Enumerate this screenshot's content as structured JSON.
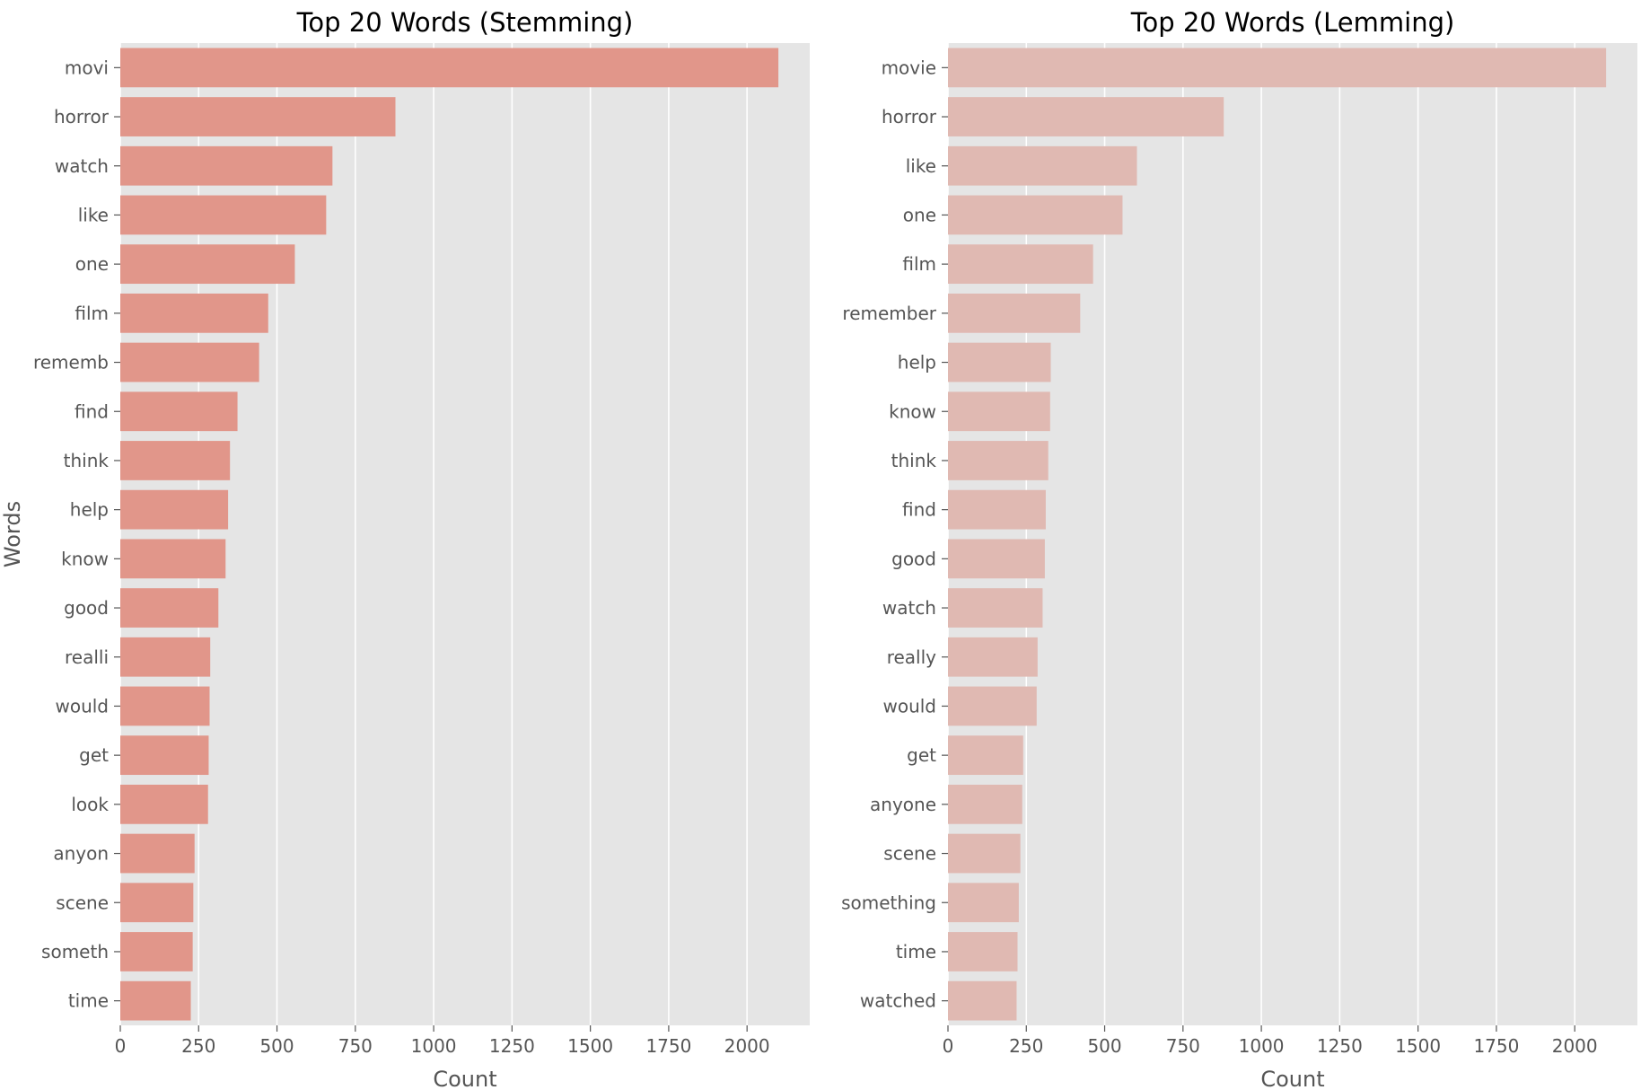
{
  "chart_data": [
    {
      "type": "bar",
      "orientation": "horizontal",
      "title": "Top 20 Words (Stemming)",
      "xlabel": "Count",
      "ylabel": "Words",
      "xlim": [
        0,
        2200
      ],
      "xticks": [
        0,
        250,
        500,
        750,
        1000,
        1250,
        1500,
        1750,
        2000
      ],
      "grid": true,
      "bar_color": "#e1968a",
      "categories": [
        "movi",
        "horror",
        "watch",
        "like",
        "one",
        "film",
        "rememb",
        "find",
        "think",
        "help",
        "know",
        "good",
        "realli",
        "would",
        "get",
        "look",
        "anyon",
        "scene",
        "someth",
        "time"
      ],
      "values": [
        2100,
        878,
        677,
        657,
        557,
        472,
        443,
        374,
        350,
        344,
        336,
        313,
        287,
        285,
        282,
        280,
        237,
        233,
        231,
        225
      ]
    },
    {
      "type": "bar",
      "orientation": "horizontal",
      "title": "Top 20 Words (Lemming)",
      "xlabel": "Count",
      "ylabel": "",
      "xlim": [
        0,
        2200
      ],
      "xticks": [
        0,
        250,
        500,
        750,
        1000,
        1250,
        1500,
        1750,
        2000
      ],
      "grid": true,
      "bar_color": "#e0b9b2",
      "categories": [
        "movie",
        "horror",
        "like",
        "one",
        "film",
        "remember",
        "help",
        "know",
        "think",
        "find",
        "good",
        "watch",
        "really",
        "would",
        "get",
        "anyone",
        "scene",
        "something",
        "time",
        "watched"
      ],
      "values": [
        2100,
        880,
        603,
        557,
        463,
        422,
        328,
        326,
        320,
        312,
        309,
        302,
        286,
        283,
        240,
        237,
        231,
        226,
        222,
        219
      ]
    }
  ],
  "colors": {
    "plot_background": "#e5e5e5",
    "grid": "#ffffff",
    "tick_text": "#555555",
    "title_text": "#000000"
  }
}
